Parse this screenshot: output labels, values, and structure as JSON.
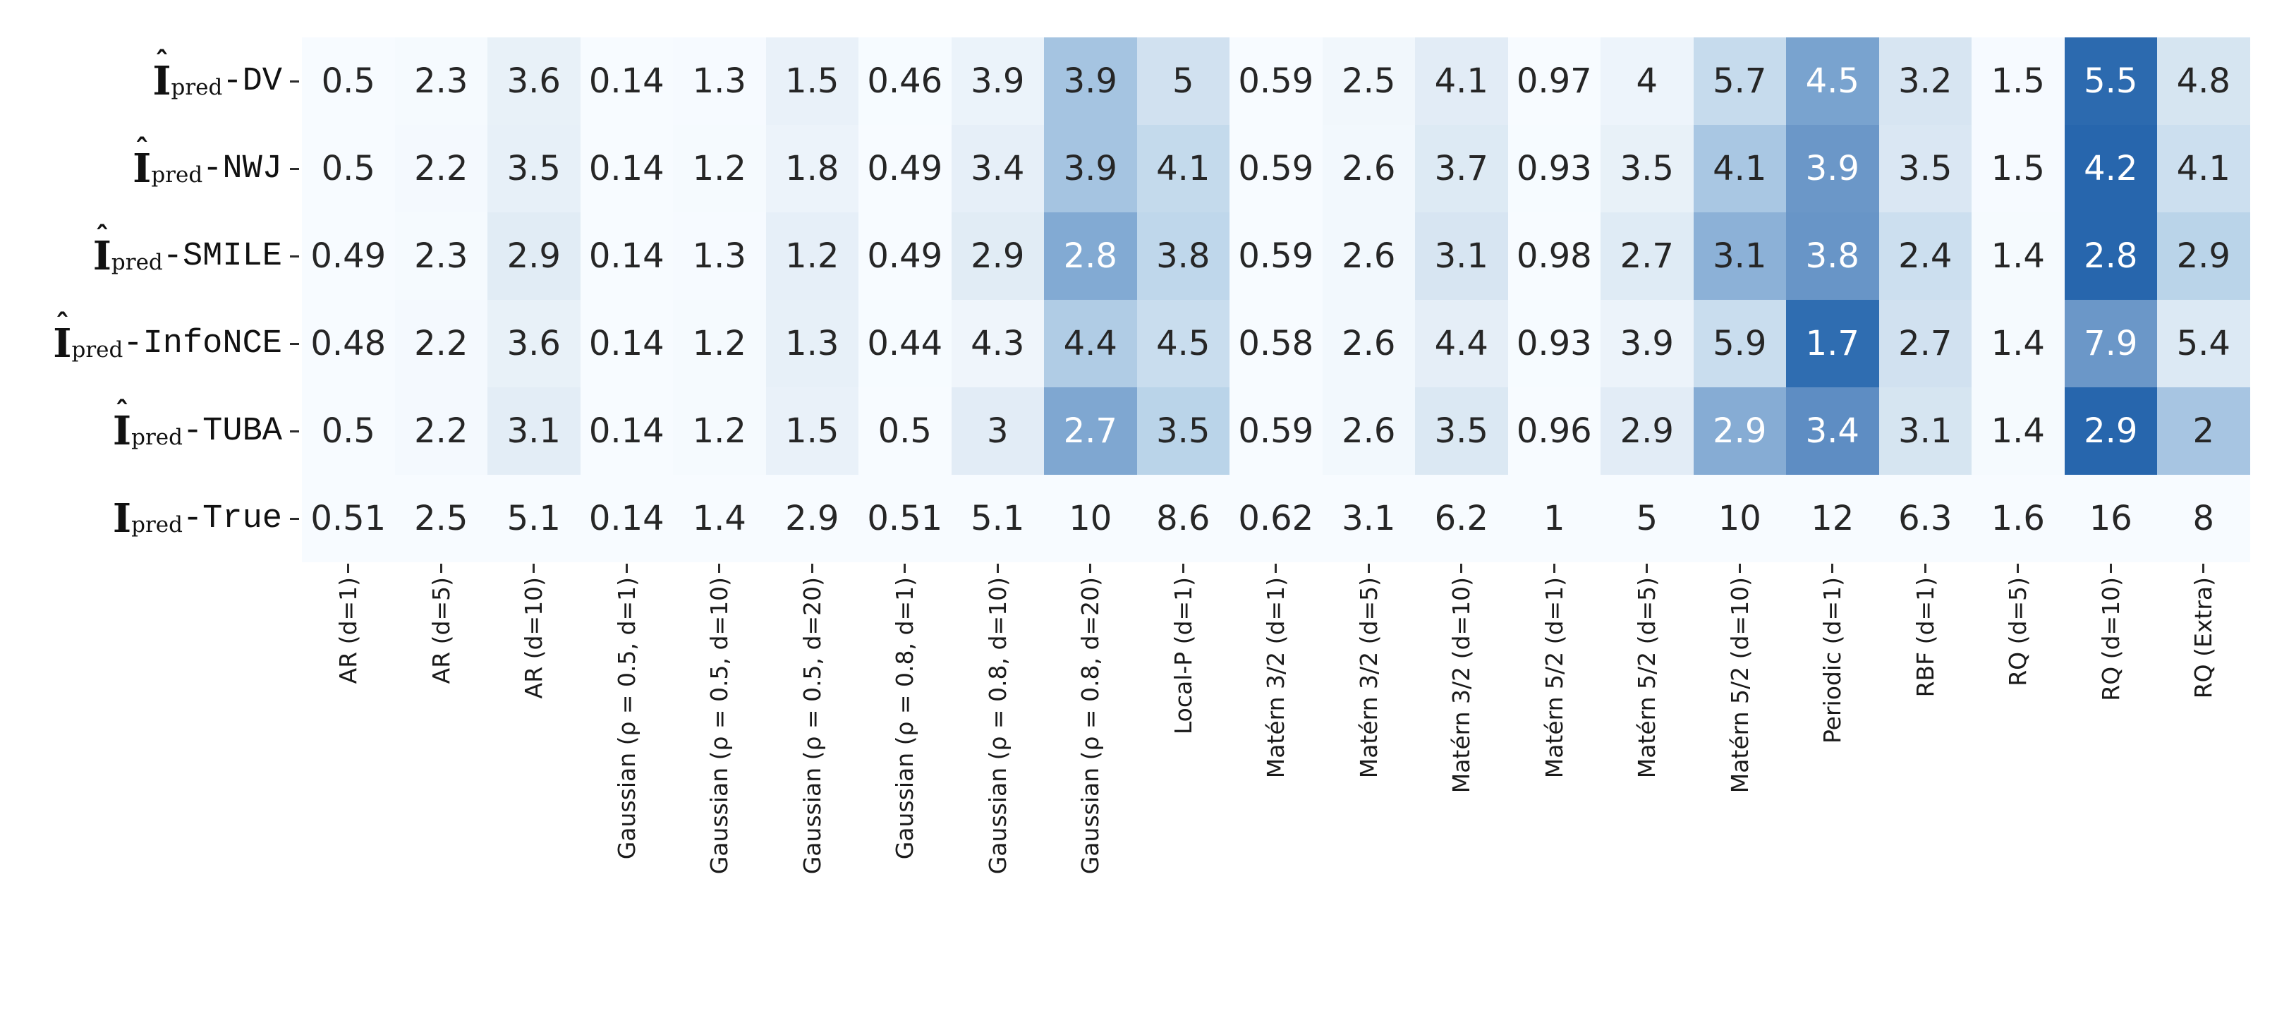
{
  "chart_data": {
    "type": "heatmap",
    "description_colors": {
      "background": "#ffffff",
      "annotation_dark": "#262626",
      "annotation_light": "#ffffff",
      "tick_color": "#2b2b2b",
      "colormap_stops": [
        [
          0.0,
          "#f7fbff"
        ],
        [
          0.12,
          "#e7f0f8"
        ],
        [
          0.25,
          "#d5e4f1"
        ],
        [
          0.38,
          "#bcd5ea"
        ],
        [
          0.47,
          "#a3c2e0"
        ],
        [
          0.56,
          "#7ca5d0"
        ],
        [
          0.65,
          "#5f8dc3"
        ],
        [
          0.78,
          "#2f6db1"
        ],
        [
          0.82,
          "#2766ad"
        ],
        [
          1.0,
          "#2766ad"
        ]
      ]
    },
    "color_rule": "abs(value - true_row_value) normalized by vmax",
    "color_vmax": 13.2,
    "white_text_threshold": 0.53,
    "rows": [
      {
        "base": "I",
        "hat": true,
        "sub": "pred",
        "suffix": "-DV"
      },
      {
        "base": "I",
        "hat": true,
        "sub": "pred",
        "suffix": "-NWJ"
      },
      {
        "base": "I",
        "hat": true,
        "sub": "pred",
        "suffix": "-SMILE"
      },
      {
        "base": "I",
        "hat": true,
        "sub": "pred",
        "suffix": "-InfoNCE"
      },
      {
        "base": "I",
        "hat": true,
        "sub": "pred",
        "suffix": "-TUBA"
      },
      {
        "base": "I",
        "hat": false,
        "sub": "pred",
        "suffix": "-True"
      }
    ],
    "true_row_index": 5,
    "categories": [
      "AR (d=1)",
      "AR (d=5)",
      "AR (d=10)",
      "Gaussian (ρ = 0.5, d=1)",
      "Gaussian (ρ = 0.5, d=10)",
      "Gaussian (ρ = 0.5, d=20)",
      "Gaussian (ρ = 0.8, d=1)",
      "Gaussian (ρ = 0.8, d=10)",
      "Gaussian (ρ = 0.8, d=20)",
      "Local-P (d=1)",
      "Matérn 3/2 (d=1)",
      "Matérn 3/2 (d=5)",
      "Matérn 3/2 (d=10)",
      "Matérn 5/2 (d=1)",
      "Matérn 5/2 (d=5)",
      "Matérn 5/2 (d=10)",
      "Periodic (d=1)",
      "RBF (d=1)",
      "RQ (d=5)",
      "RQ (d=10)",
      "RQ (Extra)"
    ],
    "values": [
      [
        0.5,
        2.3,
        3.6,
        0.14,
        1.3,
        1.5,
        0.46,
        3.9,
        3.9,
        5,
        0.59,
        2.5,
        4.1,
        0.97,
        4,
        5.7,
        4.5,
        3.2,
        1.5,
        5.5,
        4.8
      ],
      [
        0.5,
        2.2,
        3.5,
        0.14,
        1.2,
        1.8,
        0.49,
        3.4,
        3.9,
        4.1,
        0.59,
        2.6,
        3.7,
        0.93,
        3.5,
        4.1,
        3.9,
        3.5,
        1.5,
        4.2,
        4.1
      ],
      [
        0.49,
        2.3,
        2.9,
        0.14,
        1.3,
        1.2,
        0.49,
        2.9,
        2.8,
        3.8,
        0.59,
        2.6,
        3.1,
        0.98,
        2.7,
        3.1,
        3.8,
        2.4,
        1.4,
        2.8,
        2.9
      ],
      [
        0.48,
        2.2,
        3.6,
        0.14,
        1.2,
        1.3,
        0.44,
        4.3,
        4.4,
        4.5,
        0.58,
        2.6,
        4.4,
        0.93,
        3.9,
        5.9,
        1.7,
        2.7,
        1.4,
        7.9,
        5.4
      ],
      [
        0.5,
        2.2,
        3.1,
        0.14,
        1.2,
        1.5,
        0.5,
        3,
        2.7,
        3.5,
        0.59,
        2.6,
        3.5,
        0.96,
        2.9,
        2.9,
        3.4,
        3.1,
        1.4,
        2.9,
        2
      ],
      [
        0.51,
        2.5,
        5.1,
        0.14,
        1.4,
        2.9,
        0.51,
        5.1,
        10,
        8.6,
        0.62,
        3.1,
        6.2,
        1,
        5,
        10,
        12,
        6.3,
        1.6,
        16,
        8
      ]
    ]
  }
}
